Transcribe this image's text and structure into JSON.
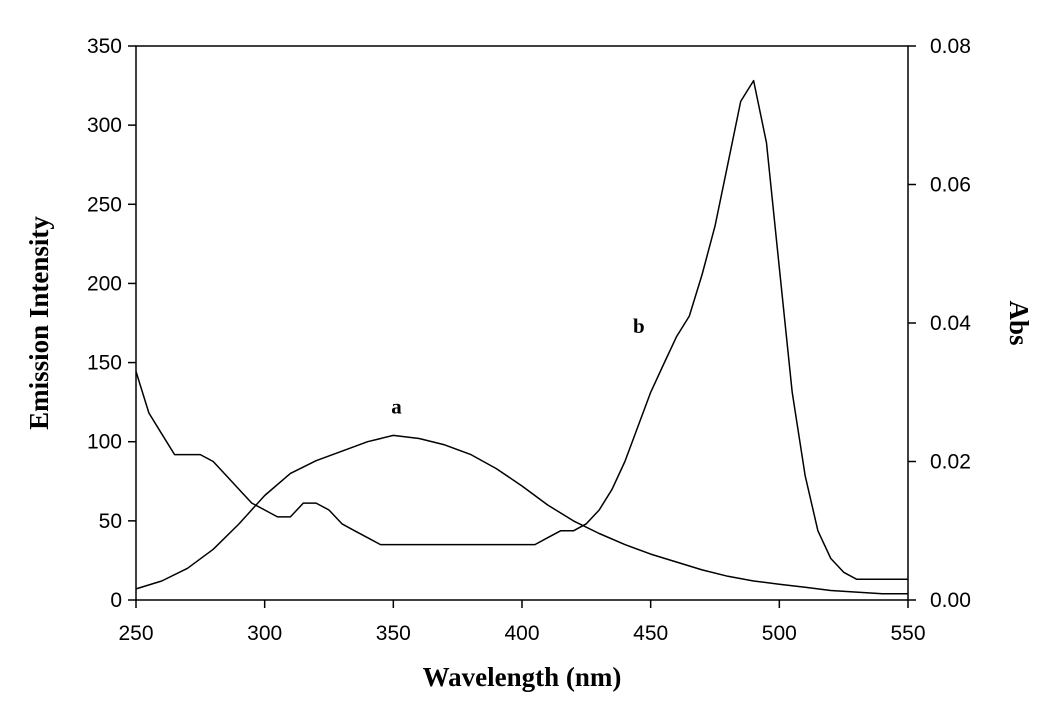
{
  "chart_data": {
    "type": "line",
    "title": "",
    "xlabel": "Wavelength (nm)",
    "ylabel": "Emission Intensity",
    "y2label": "Abs",
    "xlim": [
      250,
      550
    ],
    "ylim": [
      0,
      350
    ],
    "y2lim": [
      0,
      0.08
    ],
    "xticks": [
      250,
      300,
      350,
      400,
      450,
      500,
      550
    ],
    "yticks": [
      0,
      50,
      100,
      150,
      200,
      250,
      300,
      350
    ],
    "y2ticks": [
      0.0,
      0.02,
      0.04,
      0.06,
      0.08
    ],
    "y2tick_labels": [
      "0.00",
      "0.02",
      "0.04",
      "0.06",
      "0.08"
    ],
    "grid": false,
    "legend": "none",
    "series": [
      {
        "label": "a",
        "axis": "left",
        "x": [
          250,
          260,
          270,
          280,
          290,
          300,
          310,
          320,
          330,
          340,
          350,
          360,
          370,
          380,
          390,
          400,
          410,
          420,
          430,
          440,
          450,
          460,
          470,
          480,
          490,
          500,
          510,
          520,
          530,
          540,
          550
        ],
        "y": [
          7,
          12,
          20,
          32,
          48,
          66,
          80,
          88,
          94,
          100,
          104,
          102,
          98,
          92,
          83,
          72,
          60,
          50,
          42,
          35,
          29,
          24,
          19,
          15,
          12,
          10,
          8,
          6,
          5,
          4,
          4
        ]
      },
      {
        "label": "b",
        "axis": "right",
        "x": [
          250,
          255,
          260,
          265,
          270,
          275,
          280,
          285,
          290,
          295,
          300,
          305,
          310,
          315,
          320,
          325,
          330,
          335,
          340,
          345,
          350,
          360,
          370,
          380,
          390,
          400,
          405,
          410,
          415,
          420,
          425,
          430,
          435,
          440,
          445,
          450,
          455,
          460,
          465,
          470,
          475,
          480,
          485,
          490,
          495,
          500,
          505,
          510,
          515,
          520,
          525,
          530,
          540,
          550
        ],
        "y": [
          0.033,
          0.027,
          0.024,
          0.021,
          0.021,
          0.021,
          0.02,
          0.018,
          0.016,
          0.014,
          0.013,
          0.012,
          0.012,
          0.014,
          0.014,
          0.013,
          0.011,
          0.01,
          0.009,
          0.008,
          0.008,
          0.008,
          0.008,
          0.008,
          0.008,
          0.008,
          0.008,
          0.009,
          0.01,
          0.01,
          0.011,
          0.013,
          0.016,
          0.02,
          0.025,
          0.03,
          0.034,
          0.038,
          0.041,
          0.047,
          0.054,
          0.063,
          0.072,
          0.075,
          0.066,
          0.048,
          0.03,
          0.018,
          0.01,
          0.006,
          0.004,
          0.003,
          0.003,
          0.003
        ]
      }
    ]
  }
}
